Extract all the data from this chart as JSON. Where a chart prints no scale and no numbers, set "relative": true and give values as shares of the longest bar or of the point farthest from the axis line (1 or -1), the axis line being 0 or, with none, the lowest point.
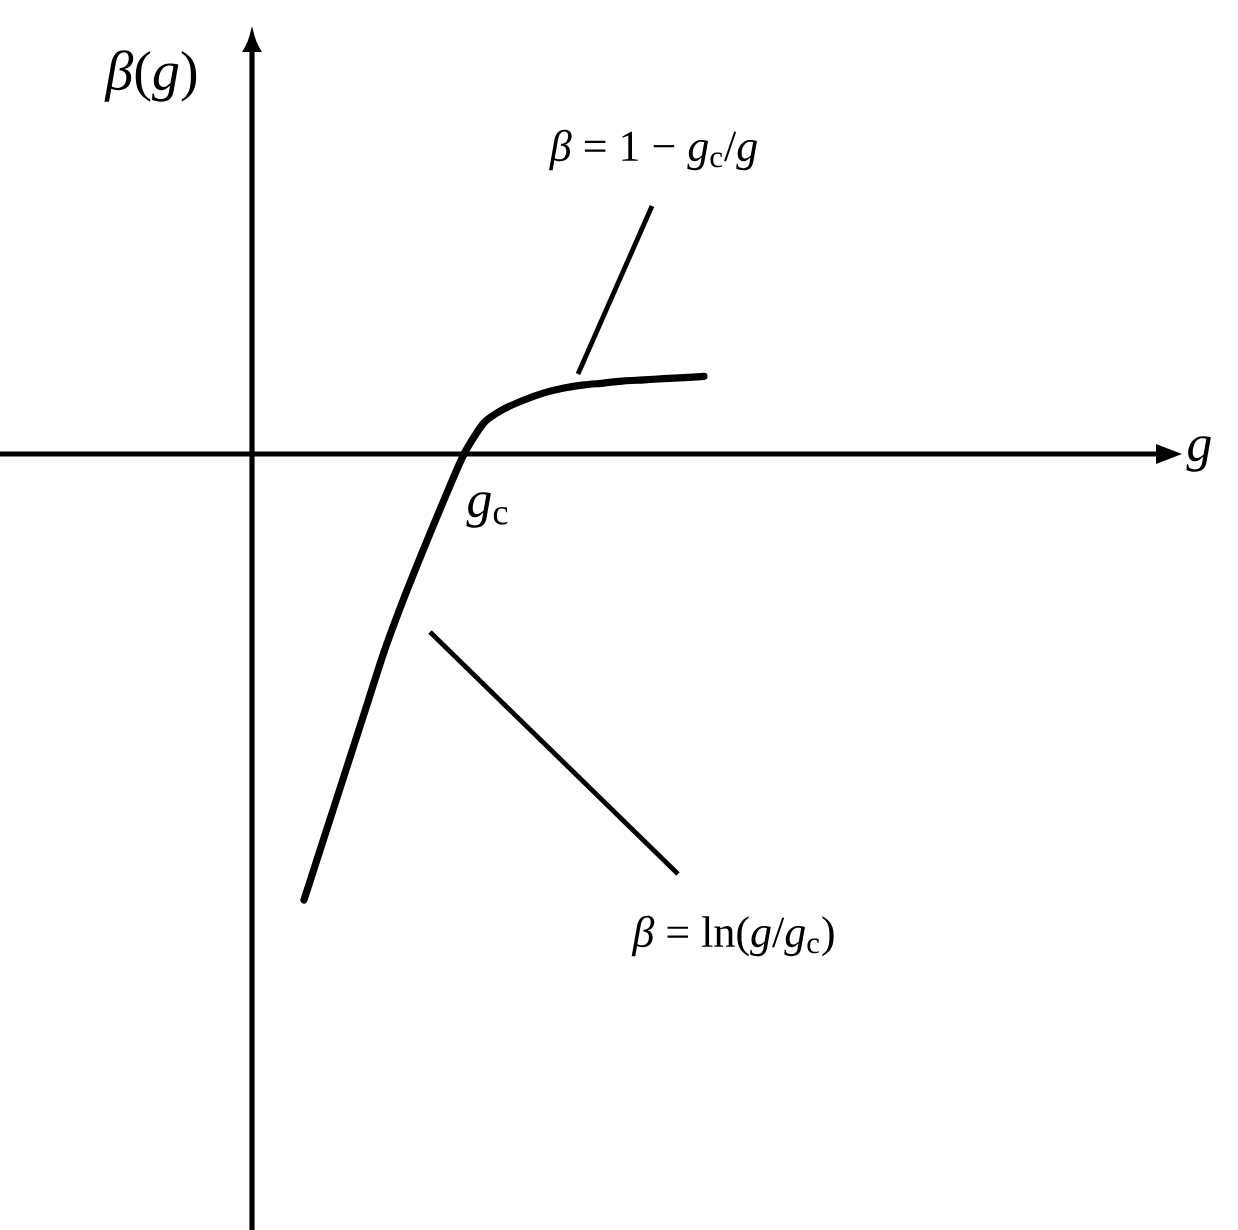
{
  "chart_data": {
    "type": "line",
    "relative": true,
    "categories": [
      null,
      null,
      null,
      null,
      null,
      null,
      null,
      null,
      null,
      null,
      null,
      null,
      null,
      null,
      null,
      null,
      null,
      null,
      null,
      null,
      null
    ],
    "values": [
      -1,
      -0.861,
      -0.722,
      -0.583,
      -0.444,
      -0.323,
      -0.211,
      -0.103,
      0,
      0.07,
      0.101,
      0.121,
      0.137,
      0.148,
      0.155,
      0.159,
      0.164,
      0.166,
      0.169,
      0.171,
      0.174
    ],
    "color": "#000000",
    "annotations": [
      "*β*(*g*)",
      "*β* = 1 − *g*$_{c}$/*g*",
      "g",
      "*g*$_{c}$",
      "*β* = ln(*g*/*g*$_{c}$)"
    ]
  }
}
